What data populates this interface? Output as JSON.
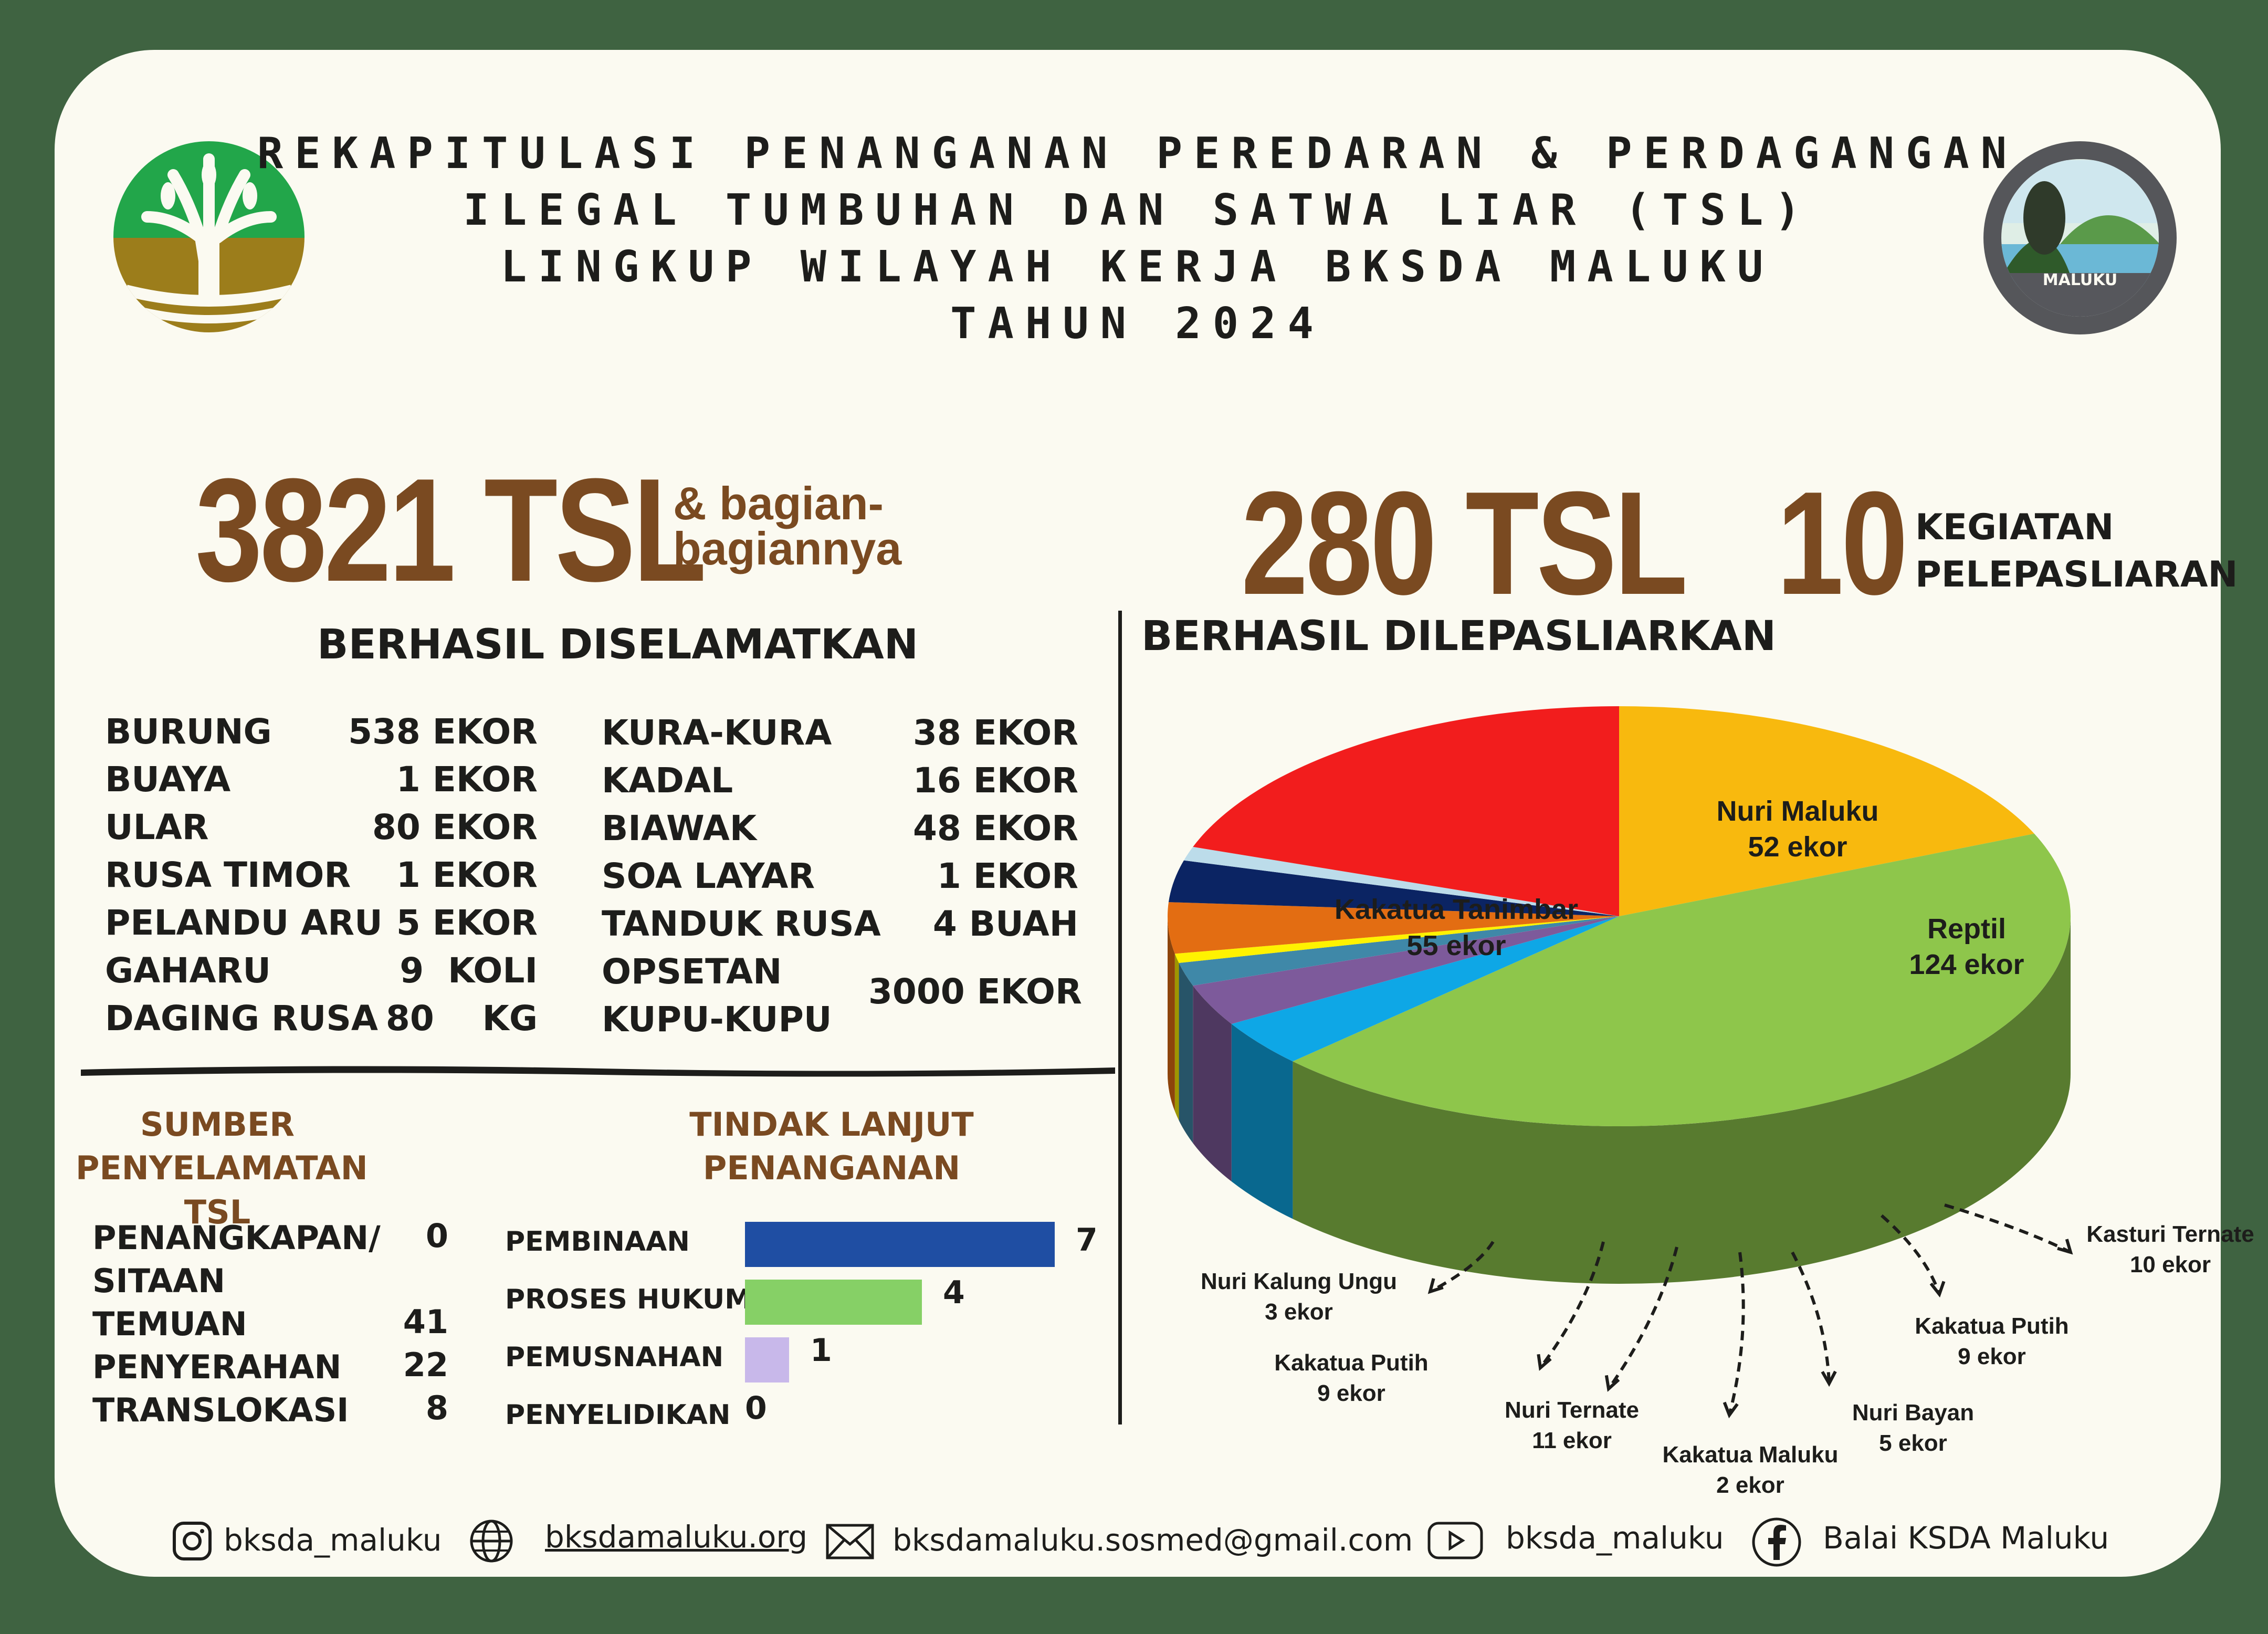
{
  "header": {
    "title_lines": [
      "REKAPITULASI PENANGANAN PEREDARAN & PERDAGANGAN",
      "ILEGAL TUMBUHAN DAN SATWA LIAR (TSL)",
      "LINGKUP WILAYAH KERJA BKSDA MALUKU",
      "TAHUN 2024"
    ],
    "emblem_text": "MALUKU"
  },
  "rescued": {
    "total": "3821 TSL",
    "total_note_1": "& bagian-",
    "total_note_2": "bagiannya",
    "heading": "BERHASIL DISELAMATKAN",
    "left_items": [
      {
        "label": "BURUNG",
        "value": "538 EKOR"
      },
      {
        "label": "BUAYA",
        "value": "1 EKOR"
      },
      {
        "label": "ULAR",
        "value": "80 EKOR"
      },
      {
        "label": "RUSA TIMOR",
        "value": "1 EKOR"
      },
      {
        "label": "PELANDU ARU",
        "value": "5 EKOR"
      },
      {
        "label": "GAHARU",
        "value": "9  KOLI"
      },
      {
        "label": "DAGING RUSA",
        "value": "80    KG"
      }
    ],
    "right_items": [
      {
        "label": "KURA-KURA",
        "value": "38 EKOR"
      },
      {
        "label": "KADAL",
        "value": "16 EKOR"
      },
      {
        "label": "BIAWAK",
        "value": "48 EKOR"
      },
      {
        "label": "SOA LAYAR",
        "value": "1 EKOR"
      },
      {
        "label": "TANDUK RUSA",
        "value": "4 BUAH"
      },
      {
        "label": "OPSETAN",
        "value": "3000 EKOR"
      },
      {
        "label": "KUPU-KUPU",
        "value": ""
      }
    ]
  },
  "sources": {
    "heading_1": "SUMBER",
    "heading_2": "PENYELAMATAN TSL",
    "items": [
      {
        "label": "PENANGKAPAN/",
        "value": "0"
      },
      {
        "label": "SITAAN",
        "value": ""
      },
      {
        "label": "TEMUAN",
        "value": "41"
      },
      {
        "label": "PENYERAHAN",
        "value": "22"
      },
      {
        "label": "TRANSLOKASI",
        "value": "8"
      }
    ]
  },
  "followup": {
    "heading_1": "TINDAK LANJUT",
    "heading_2": "PENANGANAN",
    "max": 7,
    "items": [
      {
        "label": "PEMBINAAN",
        "value": 7,
        "color": "#1f4ea3"
      },
      {
        "label": "PROSES HUKUM",
        "value": 4,
        "color": "#86d066"
      },
      {
        "label": "PEMUSNAHAN",
        "value": 1,
        "color": "#c8b8ea"
      },
      {
        "label": "PENYELIDIKAN",
        "value": 0,
        "color": "#cccccc"
      }
    ]
  },
  "released": {
    "total": "280 TSL",
    "activities_num": "10",
    "activities_1": "KEGIATAN",
    "activities_2": "PELEPASLIARAN",
    "heading": "BERHASIL DILEPASLIARKAN"
  },
  "chart_data": {
    "type": "pie",
    "slices": [
      {
        "name": "Nuri Maluku",
        "label": "52 ekor",
        "value": 52,
        "color": "#f8b90e"
      },
      {
        "name": "Reptil",
        "label": "124 ekor",
        "value": 124,
        "color": "#8ec64b"
      },
      {
        "name": "Kasturi Ternate",
        "label": "10 ekor",
        "value": 10,
        "color": "#0ea7e6"
      },
      {
        "name": "Kakatua Putih",
        "label": "9 ekor",
        "value": 9,
        "color": "#7d5a9b"
      },
      {
        "name": "Nuri Bayan",
        "label": "5 ekor",
        "value": 5,
        "color": "#3f88a8"
      },
      {
        "name": "Kakatua Maluku",
        "label": "2 ekor",
        "value": 2,
        "color": "#fff200"
      },
      {
        "name": "Nuri Ternate",
        "label": "11 ekor",
        "value": 11,
        "color": "#e36d12"
      },
      {
        "name": "Kakatua Putih",
        "label": "9 ekor",
        "value": 9,
        "color": "#0b2463"
      },
      {
        "name": "Nuri Kalung Ungu",
        "label": "3 ekor",
        "value": 3,
        "color": "#bcdcea"
      },
      {
        "name": "Kakatua Tanimbar",
        "label": "55 ekor",
        "value": 55,
        "color": "#f21d1d"
      }
    ]
  },
  "footer": {
    "instagram": "bksda_maluku",
    "website": "bksdamaluku.org",
    "email": "bksdamaluku.sosmed@gmail.com",
    "youtube": "bksda_maluku",
    "facebook": "Balai KSDA Maluku"
  }
}
